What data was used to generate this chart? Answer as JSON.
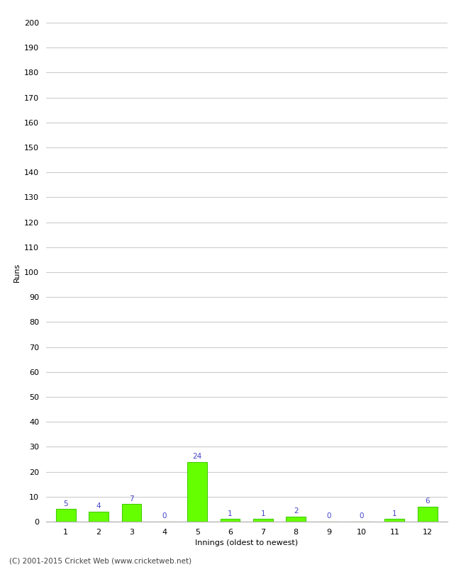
{
  "xlabel": "Innings (oldest to newest)",
  "ylabel": "Runs",
  "categories": [
    1,
    2,
    3,
    4,
    5,
    6,
    7,
    8,
    9,
    10,
    11,
    12
  ],
  "values": [
    5,
    4,
    7,
    0,
    24,
    1,
    1,
    2,
    0,
    0,
    1,
    6
  ],
  "bar_color": "#66ff00",
  "bar_edge_color": "#44cc00",
  "label_color": "#4444cc",
  "ylim": [
    0,
    200
  ],
  "yticks": [
    0,
    10,
    20,
    30,
    40,
    50,
    60,
    70,
    80,
    90,
    100,
    110,
    120,
    130,
    140,
    150,
    160,
    170,
    180,
    190,
    200
  ],
  "background_color": "#ffffff",
  "grid_color": "#cccccc",
  "footer": "(C) 2001-2015 Cricket Web (www.cricketweb.net)",
  "label_fontsize": 7.5,
  "axis_label_fontsize": 8,
  "tick_fontsize": 8,
  "footer_fontsize": 7.5
}
